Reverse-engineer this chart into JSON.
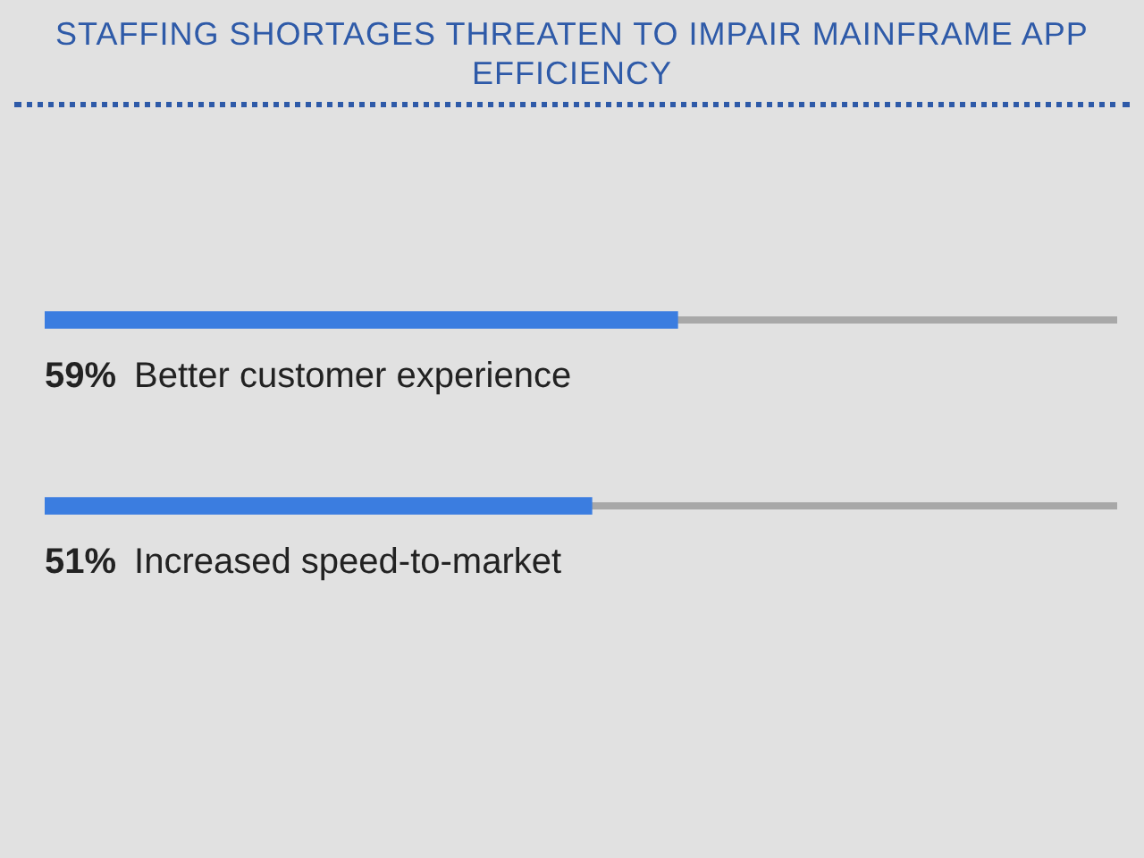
{
  "chart_data": {
    "type": "bar",
    "orientation": "horizontal",
    "title": "STAFFING SHORTAGES THREATEN TO IMPAIR MAINFRAME APP EFFICIENCY",
    "categories": [
      "Better customer experience",
      "Increased speed-to-market"
    ],
    "values": [
      59,
      51
    ],
    "value_labels": [
      "59%",
      "51%"
    ],
    "color": "#3b7de0",
    "xlim": [
      0,
      100
    ],
    "tick_labels": false
  }
}
